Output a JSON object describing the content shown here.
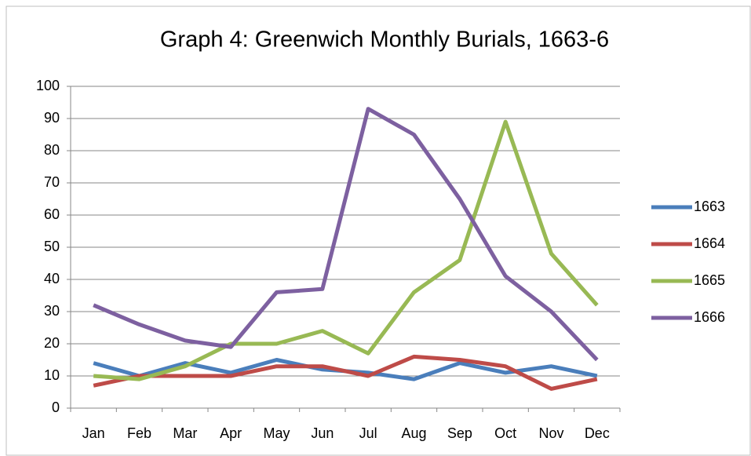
{
  "chart_data": {
    "type": "line",
    "title": "Graph 4: Greenwich Monthly Burials, 1663-6",
    "categories": [
      "Jan",
      "Feb",
      "Mar",
      "Apr",
      "May",
      "Jun",
      "Jul",
      "Aug",
      "Sep",
      "Oct",
      "Nov",
      "Dec"
    ],
    "series": [
      {
        "name": "1663",
        "color": "#4a7ebb",
        "values": [
          14,
          10,
          14,
          11,
          15,
          12,
          11,
          9,
          14,
          11,
          13,
          10
        ]
      },
      {
        "name": "1664",
        "color": "#be4b48",
        "values": [
          7,
          10,
          10,
          10,
          13,
          13,
          10,
          16,
          15,
          13,
          6,
          9
        ]
      },
      {
        "name": "1665",
        "color": "#98b954",
        "values": [
          10,
          9,
          13,
          20,
          20,
          24,
          17,
          36,
          46,
          89,
          48,
          32
        ]
      },
      {
        "name": "1666",
        "color": "#7d60a0",
        "values": [
          32,
          26,
          21,
          19,
          36,
          37,
          93,
          85,
          65,
          41,
          30,
          15
        ]
      }
    ],
    "ylim": [
      0,
      100
    ],
    "yticks": [
      0,
      10,
      20,
      30,
      40,
      50,
      60,
      70,
      80,
      90,
      100
    ],
    "grid": true,
    "legend": "right"
  }
}
